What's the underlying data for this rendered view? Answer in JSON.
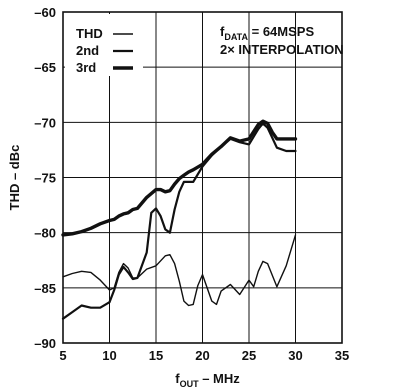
{
  "chart_data": {
    "type": "line",
    "title": "",
    "xlabel": {
      "main": "f",
      "sub": "OUT",
      "rest": " – MHz"
    },
    "ylabel": "THD – dBc",
    "xlim": [
      5,
      35
    ],
    "ylim": [
      -90,
      -60
    ],
    "xticks": [
      5,
      10,
      15,
      20,
      25,
      30,
      35
    ],
    "yticks": [
      -60,
      -65,
      -70,
      -75,
      -80,
      -85,
      -90
    ],
    "grid": true,
    "legend_position": "top-left",
    "annotations": [
      {
        "parts": [
          {
            "text": "f"
          },
          {
            "text": "DATA",
            "sub": true
          },
          {
            "text": " = 64MSPS"
          }
        ]
      },
      {
        "parts": [
          {
            "text": "2× INTERPOLATION"
          }
        ]
      }
    ],
    "series": [
      {
        "name": "THD",
        "stroke_width": 1.4,
        "x": [
          5,
          6,
          7,
          8,
          9,
          10,
          10.5,
          11,
          11.5,
          12,
          12.5,
          13,
          14,
          15,
          15.5,
          16,
          16.5,
          17,
          17.5,
          18,
          18.5,
          19,
          20,
          21,
          22,
          23,
          24,
          25,
          26,
          26.5,
          27,
          27.5,
          28,
          29,
          30
        ],
        "y": [
          -80.2,
          -80.1,
          -79.9,
          -79.6,
          -79.2,
          -78.9,
          -78.8,
          -78.5,
          -78.3,
          -78.2,
          -77.9,
          -77.8,
          -76.8,
          -76.1,
          -76.1,
          -76.3,
          -76.2,
          -75.6,
          -75.1,
          -74.8,
          -74.5,
          -74.3,
          -73.8,
          -72.9,
          -72.2,
          -71.4,
          -71.7,
          -71.5,
          -70.2,
          -69.9,
          -70.1,
          -70.9,
          -71.5,
          -71.5,
          -71.5
        ]
      },
      {
        "name": "2nd",
        "stroke_width": 2.2,
        "x": [
          5,
          6,
          7,
          8,
          9,
          10,
          10.5,
          11,
          11.5,
          12,
          12.5,
          13,
          14,
          14.5,
          15,
          15.5,
          16,
          16.5,
          17,
          17.5,
          18,
          19,
          20,
          21,
          22,
          23,
          24,
          25,
          26,
          26.5,
          27,
          28,
          29,
          30
        ],
        "y": [
          -87.8,
          -87.2,
          -86.6,
          -86.8,
          -86.8,
          -86.3,
          -85.2,
          -83.8,
          -83.1,
          -83.6,
          -84.2,
          -84.1,
          -81.8,
          -78.2,
          -77.8,
          -78.5,
          -79.7,
          -80.0,
          -77.9,
          -76.3,
          -75.4,
          -75.4,
          -74.0,
          -73.0,
          -72.2,
          -71.5,
          -71.8,
          -72.0,
          -70.6,
          -70.1,
          -70.5,
          -72.3,
          -72.6,
          -72.6
        ]
      },
      {
        "name": "3rd",
        "stroke_width": 3.4,
        "x": [
          5,
          6,
          7,
          8,
          9,
          10,
          10.5,
          11,
          11.5,
          12,
          12.5,
          13,
          14,
          15,
          15.5,
          16,
          16.5,
          17,
          17.5,
          18,
          18.5,
          19,
          20,
          21,
          22,
          23,
          24,
          25,
          26,
          26.5,
          27,
          27.5,
          28,
          29,
          30
        ],
        "y": [
          -80.2,
          -80.1,
          -79.9,
          -79.6,
          -79.2,
          -78.9,
          -78.8,
          -78.5,
          -78.3,
          -78.2,
          -77.9,
          -77.8,
          -76.8,
          -76.1,
          -76.1,
          -76.3,
          -76.2,
          -75.6,
          -75.1,
          -74.8,
          -74.5,
          -74.3,
          -73.8,
          -72.9,
          -72.2,
          -71.4,
          -71.7,
          -71.5,
          -70.2,
          -69.9,
          -70.1,
          -70.9,
          -71.5,
          -71.5,
          -71.5
        ]
      },
      {
        "name": "",
        "stroke_width": 1.4,
        "x": [
          5,
          6,
          7,
          8,
          9,
          10,
          10.5,
          11,
          11.5,
          12,
          12.5,
          13,
          14,
          15,
          16,
          16.5,
          17,
          17.5,
          18,
          18.5,
          19,
          19.5,
          20,
          21,
          21.5,
          22,
          23,
          24,
          25,
          25.5,
          26,
          26.5,
          27,
          28,
          29,
          30
        ],
        "y": [
          -84.0,
          -83.7,
          -83.5,
          -83.6,
          -84.3,
          -85.2,
          -85.0,
          -83.6,
          -82.8,
          -83.2,
          -84.1,
          -84.1,
          -83.3,
          -83.0,
          -82.1,
          -82.0,
          -82.8,
          -84.4,
          -86.2,
          -86.6,
          -86.5,
          -84.8,
          -83.8,
          -86.2,
          -86.5,
          -85.3,
          -84.7,
          -85.6,
          -84.3,
          -84.9,
          -83.5,
          -82.6,
          -82.8,
          -84.9,
          -83.0,
          -80.2
        ]
      }
    ]
  }
}
